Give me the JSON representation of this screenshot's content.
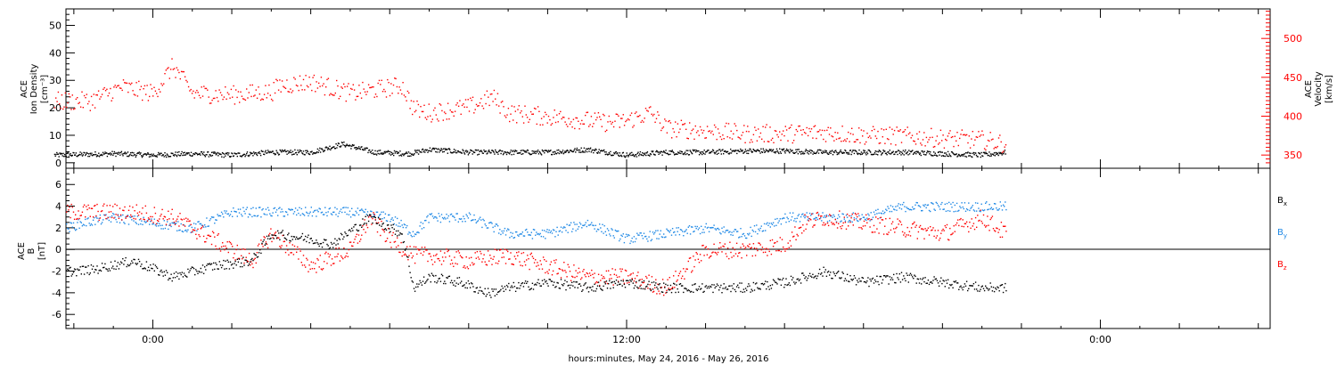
{
  "chart_data": [
    {
      "type": "scatter",
      "panel": "top",
      "ylabel_lines": [
        "ACE",
        "Ion Density",
        "[cm⁻³]"
      ],
      "ylabel_right_lines": [
        "ACE",
        "Velocity",
        "[km/s]"
      ],
      "ylim": [
        -2,
        56
      ],
      "ylim_right": [
        333,
        538
      ],
      "yticks": [
        "0",
        "10",
        "20",
        "30",
        "40",
        "50"
      ],
      "yticks_right": [
        "350",
        "400",
        "450",
        "500"
      ],
      "colors": {
        "density": "#000000",
        "velocity": "#ff0000"
      },
      "series": [
        {
          "name": "Ion Density",
          "axis": "left",
          "x": [
            -2.5,
            -1,
            0,
            1,
            2,
            3,
            4,
            4.8,
            5.6,
            6.5,
            7,
            8,
            9,
            10,
            11,
            12,
            13,
            14,
            15,
            16,
            17,
            18,
            19,
            20,
            21,
            21.6
          ],
          "y": [
            3,
            3.5,
            3,
            3.5,
            3,
            4,
            4,
            7,
            4,
            3.5,
            5,
            4,
            4,
            4,
            5,
            3,
            4,
            4,
            4.5,
            4.5,
            4,
            4,
            4,
            3.5,
            3,
            4
          ]
        },
        {
          "name": "Velocity",
          "axis": "right",
          "x": [
            -2.5,
            -1.6,
            -0.8,
            0,
            0.5,
            1,
            2,
            3,
            3.2,
            4,
            5,
            6.3,
            6.6,
            7,
            8,
            8.6,
            9,
            10,
            11,
            11.6,
            12,
            12.6,
            13,
            14,
            15,
            16,
            17,
            18,
            19,
            20,
            21,
            21.6
          ],
          "y": [
            420,
            420,
            438,
            430,
            465,
            430,
            428,
            432,
            440,
            445,
            430,
            440,
            410,
            405,
            412,
            425,
            405,
            400,
            395,
            392,
            395,
            405,
            385,
            382,
            378,
            378,
            380,
            376,
            375,
            372,
            370,
            365
          ]
        }
      ]
    },
    {
      "type": "scatter",
      "panel": "bottom",
      "ylabel_lines": [
        "ACE",
        "B",
        "[nT]"
      ],
      "ylim": [
        -7.3,
        7.5
      ],
      "yticks": [
        "-6",
        "-4",
        "-2",
        "0",
        "2",
        "4",
        "6"
      ],
      "xlabel": "hours:minutes, May 24, 2016 - May 26, 2016",
      "xticks": [
        "0:00",
        "12:00",
        "0:00"
      ],
      "xlim": [
        -2.2,
        28.3
      ],
      "legend": [
        {
          "name": "Bx",
          "main": "B",
          "sub": "x",
          "color": "#000000"
        },
        {
          "name": "By",
          "main": "B",
          "sub": "y",
          "color": "#1e88e5"
        },
        {
          "name": "Bz",
          "main": "B",
          "sub": "z",
          "color": "#ff0000"
        }
      ],
      "series": [
        {
          "name": "Bx",
          "x": [
            -2.2,
            -1.5,
            -0.5,
            0.5,
            1.5,
            2.5,
            3,
            4,
            4.5,
            5.5,
            6.3,
            6.6,
            7,
            7.8,
            8.5,
            9,
            10,
            11,
            12,
            13,
            14,
            15,
            16,
            17,
            18,
            19,
            20,
            21,
            21.6
          ],
          "y": [
            -2,
            -1.8,
            -1,
            -2.5,
            -1.5,
            -1,
            1.5,
            1,
            0.5,
            3,
            1.5,
            -3.5,
            -2.5,
            -3,
            -4,
            -3.5,
            -3,
            -3.5,
            -3,
            -3.5,
            -3.5,
            -3.5,
            -3,
            -2,
            -3,
            -2.5,
            -3,
            -3.5,
            -3.5
          ]
        },
        {
          "name": "By",
          "x": [
            -2.2,
            -1.8,
            -1,
            0,
            1,
            2,
            3,
            4,
            5,
            6,
            6.6,
            7,
            8,
            9,
            10,
            11,
            12,
            13,
            14,
            15,
            16,
            17,
            18,
            19,
            20,
            21,
            21.6
          ],
          "y": [
            2,
            2.5,
            3,
            2.5,
            2,
            3.5,
            3.5,
            3.5,
            3.5,
            3,
            1.5,
            3,
            3,
            1.5,
            1.5,
            2.5,
            1,
            1.5,
            2,
            1.5,
            3,
            3,
            3,
            4,
            4,
            4,
            4
          ]
        },
        {
          "name": "Bz",
          "x": [
            -2.2,
            -1.5,
            -0.5,
            0.5,
            1.5,
            2.5,
            3,
            4,
            5,
            5.5,
            6,
            6.6,
            7,
            8,
            9,
            10,
            11,
            12,
            13,
            14,
            15,
            16,
            16.5,
            17,
            18,
            19,
            20,
            21,
            21.6
          ],
          "y": [
            3.5,
            3.5,
            3.5,
            3,
            1,
            -1,
            1.5,
            -1.5,
            0,
            3,
            1,
            -0.5,
            -0.5,
            -1,
            -0.5,
            -1.5,
            -2.5,
            -2.5,
            -3.5,
            0,
            0,
            0.5,
            2.5,
            3,
            2.5,
            2,
            1.5,
            3,
            1.5
          ]
        }
      ]
    }
  ]
}
